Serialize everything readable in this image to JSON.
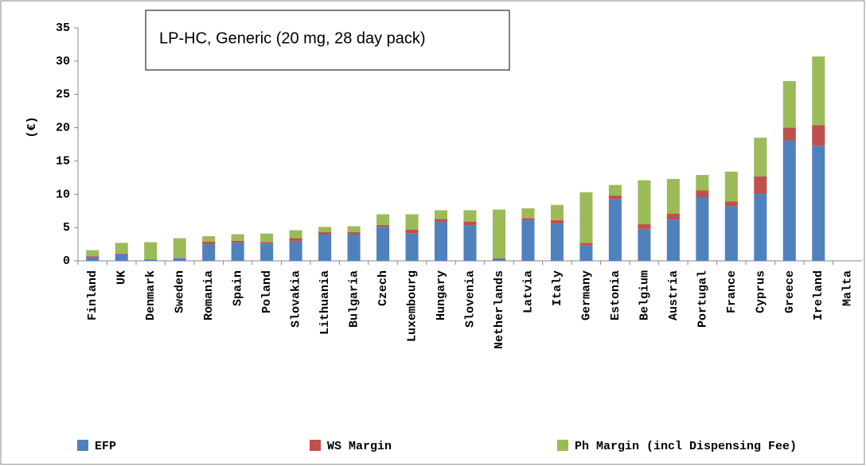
{
  "chart_data": {
    "type": "stacked_bar",
    "title": "LP-HC, Generic (20 mg, 28 day pack)",
    "y_label": "(€)",
    "categories": [
      "Finland",
      "UK",
      "Denmark",
      "Sweden",
      "Romania",
      "Spain",
      "Poland",
      "Slovakia",
      "Lithuania",
      "Bulgaria",
      "Czech",
      "Luxembourg",
      "Hungary",
      "Slovenia",
      "Netherlands",
      "Latvia",
      "Italy",
      "Germany",
      "Estonia",
      "Belgium",
      "Austria",
      "Portugal",
      "France",
      "Cyprus",
      "Greece",
      "Ireland",
      "Malta"
    ],
    "series": [
      {
        "name": "EFP",
        "color": "#4f81bd",
        "values": [
          0.6,
          1.0,
          0.2,
          0.4,
          2.5,
          2.7,
          2.6,
          3.0,
          4.0,
          4.0,
          5.1,
          4.1,
          5.8,
          5.3,
          0.3,
          6.1,
          5.6,
          2.3,
          9.3,
          4.8,
          6.2,
          9.5,
          8.2,
          10.1,
          18.1,
          17.3,
          null
        ]
      },
      {
        "name": "WS Margin",
        "color": "#c0504d",
        "values": [
          0.1,
          0.1,
          0.05,
          0.05,
          0.4,
          0.3,
          0.2,
          0.4,
          0.3,
          0.3,
          0.3,
          0.6,
          0.5,
          0.6,
          0.1,
          0.3,
          0.5,
          0.4,
          0.5,
          0.7,
          0.9,
          1.1,
          0.7,
          2.6,
          1.9,
          3.1,
          null
        ]
      },
      {
        "name": "Ph Margin (incl Dispensing Fee)",
        "color": "#9bbb59",
        "values": [
          0.9,
          1.6,
          2.55,
          2.95,
          0.8,
          1.0,
          1.3,
          1.2,
          0.8,
          0.9,
          1.6,
          2.3,
          1.3,
          1.7,
          7.3,
          1.5,
          2.3,
          7.6,
          1.6,
          6.6,
          5.2,
          2.3,
          4.5,
          5.8,
          7.0,
          10.3,
          null
        ]
      }
    ],
    "ylim": [
      0,
      35
    ],
    "yticks": [
      0,
      5,
      10,
      15,
      20,
      25,
      30,
      35
    ],
    "grid": false,
    "legend": "bottom"
  }
}
